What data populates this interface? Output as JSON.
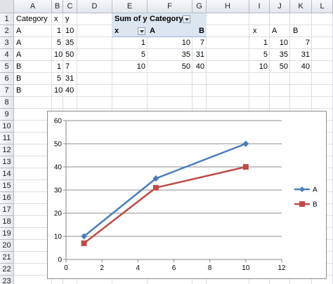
{
  "columns": [
    "A",
    "B",
    "C",
    "D",
    "E",
    "F",
    "G",
    "H",
    "I",
    "J",
    "K",
    "L"
  ],
  "rows": [
    "1",
    "2",
    "3",
    "4",
    "5",
    "6",
    "7",
    "8",
    "9",
    "10",
    "11",
    "12",
    "13",
    "14",
    "15",
    "16",
    "17",
    "18",
    "19",
    "20",
    "21",
    "22",
    "23"
  ],
  "source_table": {
    "headers": [
      "Category",
      "x",
      "y"
    ],
    "rows": [
      [
        "A",
        "1",
        "10"
      ],
      [
        "A",
        "5",
        "35"
      ],
      [
        "A",
        "10",
        "50"
      ],
      [
        "B",
        "1",
        "7"
      ],
      [
        "B",
        "5",
        "31"
      ],
      [
        "B",
        "10",
        "40"
      ]
    ]
  },
  "pivot": {
    "sum_label": "Sum of y",
    "category_label": "Category",
    "x_label": "x",
    "col_a": "A",
    "col_b": "B",
    "rows": [
      [
        "1",
        "10",
        "7"
      ],
      [
        "5",
        "35",
        "31"
      ],
      [
        "10",
        "50",
        "40"
      ]
    ]
  },
  "summary_table": {
    "headers": [
      "x",
      "A",
      "B"
    ],
    "rows": [
      [
        "1",
        "10",
        "7"
      ],
      [
        "5",
        "35",
        "31"
      ],
      [
        "10",
        "50",
        "40"
      ]
    ]
  },
  "chart_data": {
    "type": "line",
    "title": "",
    "xlabel": "",
    "ylabel": "",
    "xlim": [
      0,
      12
    ],
    "ylim": [
      0,
      60
    ],
    "xticks": [
      "0",
      "2",
      "4",
      "6",
      "8",
      "10",
      "12"
    ],
    "yticks": [
      "0",
      "10",
      "20",
      "30",
      "40",
      "50",
      "60"
    ],
    "grid": "horizontal",
    "legend_position": "right",
    "series": [
      {
        "name": "A",
        "color": "#4a7ebb",
        "marker": "diamond",
        "x": [
          1,
          5,
          10
        ],
        "y": [
          10,
          35,
          50
        ]
      },
      {
        "name": "B",
        "color": "#be4b48",
        "marker": "square",
        "x": [
          1,
          5,
          10
        ],
        "y": [
          7,
          31,
          40
        ]
      }
    ]
  }
}
